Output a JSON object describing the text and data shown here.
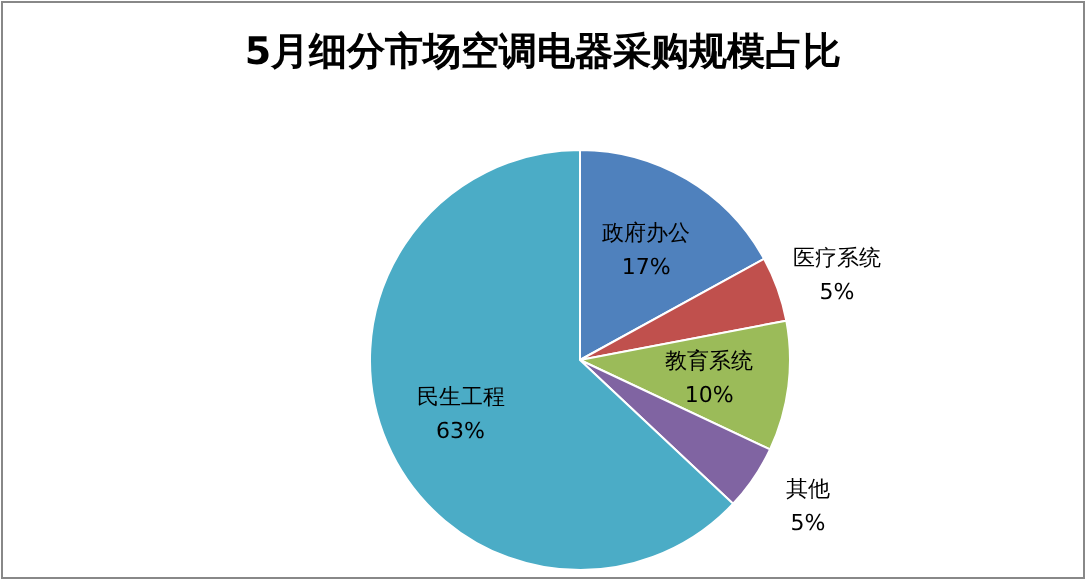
{
  "chart_data": {
    "type": "pie",
    "title": "5月细分市场空调电器采购规模占比",
    "categories": [
      "政府办公",
      "医疗系统",
      "教育系统",
      "其他",
      "民生工程"
    ],
    "values": [
      17,
      5,
      10,
      5,
      63
    ],
    "colors": [
      "#4f81bd",
      "#c0504d",
      "#9bbb59",
      "#8064a2",
      "#4bacc6"
    ],
    "value_labels": [
      "17%",
      "5%",
      "10%",
      "5%",
      "63%"
    ]
  }
}
